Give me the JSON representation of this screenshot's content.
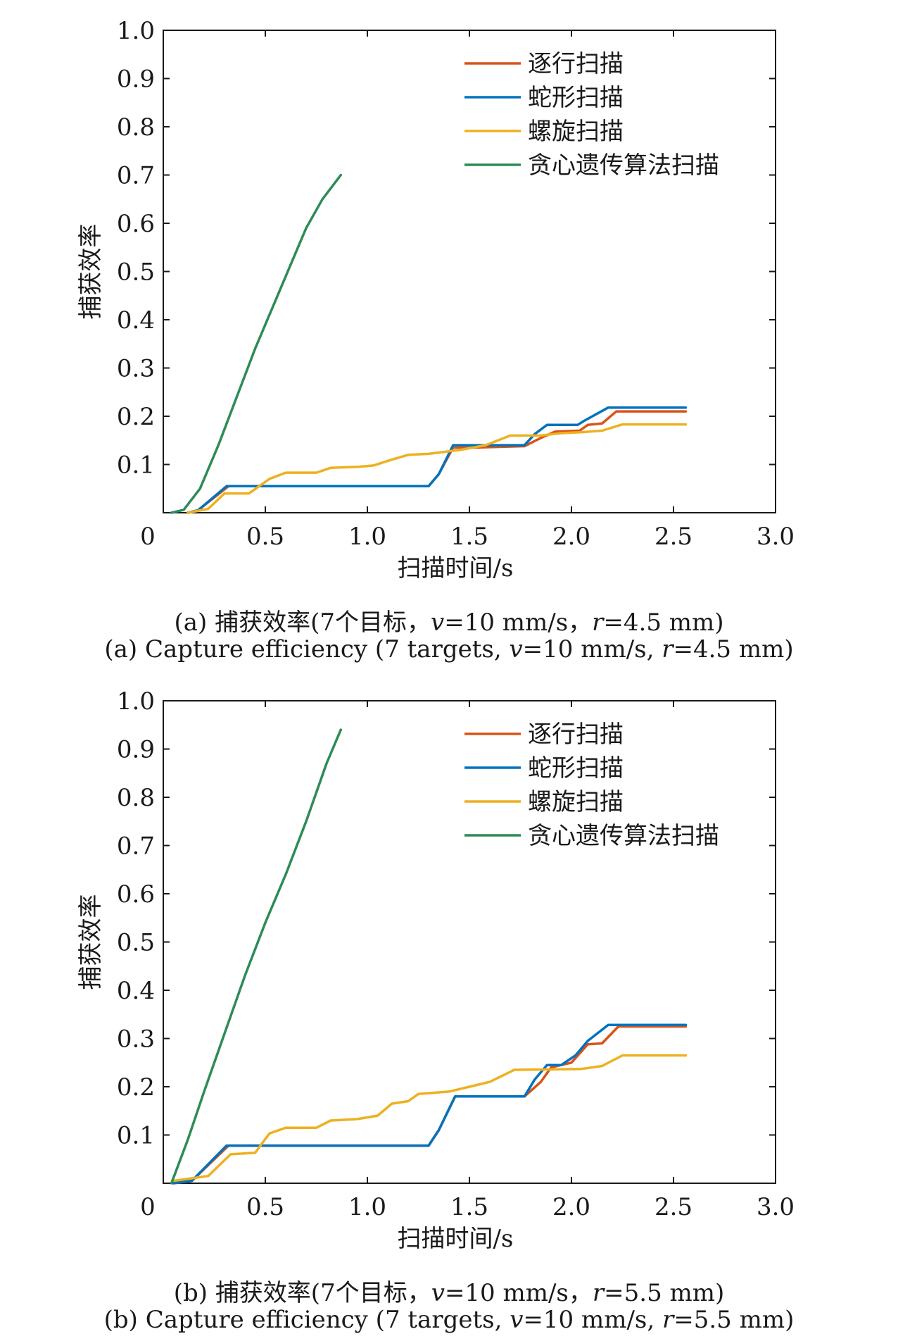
{
  "chart_data": [
    {
      "type": "line",
      "xlabel": "扫描时间/s",
      "ylabel": "捕获效率",
      "xlim": [
        0,
        3.0
      ],
      "ylim": [
        0,
        1.0
      ],
      "xticks": [
        "0",
        "0.5",
        "1.0",
        "1.5",
        "2.0",
        "2.5",
        "3.0"
      ],
      "yticks": [
        "0.1",
        "0.2",
        "0.3",
        "0.4",
        "0.5",
        "0.6",
        "0.7",
        "0.8",
        "0.9",
        "1.0"
      ],
      "legend_position": "top-right",
      "grid": false,
      "caption_cn": {
        "label": "(a)",
        "text": "捕获效率(7个目标，",
        "v": "v",
        "v_val": "=10 mm/s，",
        "r": "r",
        "r_val": "=4.5 mm)"
      },
      "caption_en": {
        "label": "(a)",
        "text": "Capture efficiency (7 targets, ",
        "v": "v",
        "v_val": "=10 mm/s, ",
        "r": "r",
        "r_val": "=4.5 mm)"
      },
      "series": [
        {
          "name": "逐行扫描",
          "color": "#d95319",
          "points": [
            [
              0.12,
              0
            ],
            [
              0.17,
              0.005
            ],
            [
              0.32,
              0.055
            ],
            [
              1.3,
              0.055
            ],
            [
              1.35,
              0.08
            ],
            [
              1.42,
              0.135
            ],
            [
              1.52,
              0.135
            ],
            [
              1.77,
              0.138
            ],
            [
              1.85,
              0.155
            ],
            [
              1.92,
              0.168
            ],
            [
              2.04,
              0.17
            ],
            [
              2.08,
              0.182
            ],
            [
              2.15,
              0.185
            ],
            [
              2.22,
              0.21
            ],
            [
              2.56,
              0.21
            ]
          ]
        },
        {
          "name": "蛇形扫描",
          "color": "#0072bd",
          "points": [
            [
              0.12,
              0
            ],
            [
              0.17,
              0.005
            ],
            [
              0.31,
              0.055
            ],
            [
              1.3,
              0.055
            ],
            [
              1.35,
              0.08
            ],
            [
              1.42,
              0.14
            ],
            [
              1.52,
              0.14
            ],
            [
              1.77,
              0.14
            ],
            [
              1.82,
              0.163
            ],
            [
              1.88,
              0.182
            ],
            [
              2.03,
              0.182
            ],
            [
              2.06,
              0.19
            ],
            [
              2.18,
              0.218
            ],
            [
              2.56,
              0.218
            ]
          ]
        },
        {
          "name": "螺旋扫描",
          "color": "#edb120",
          "points": [
            [
              0.12,
              0
            ],
            [
              0.22,
              0.008
            ],
            [
              0.3,
              0.04
            ],
            [
              0.42,
              0.04
            ],
            [
              0.52,
              0.07
            ],
            [
              0.6,
              0.083
            ],
            [
              0.75,
              0.083
            ],
            [
              0.82,
              0.093
            ],
            [
              0.95,
              0.095
            ],
            [
              1.03,
              0.098
            ],
            [
              1.12,
              0.11
            ],
            [
              1.2,
              0.12
            ],
            [
              1.3,
              0.122
            ],
            [
              1.45,
              0.13
            ],
            [
              1.58,
              0.14
            ],
            [
              1.7,
              0.16
            ],
            [
              1.85,
              0.16
            ],
            [
              1.95,
              0.165
            ],
            [
              2.05,
              0.167
            ],
            [
              2.15,
              0.17
            ],
            [
              2.25,
              0.183
            ],
            [
              2.56,
              0.183
            ]
          ]
        },
        {
          "name": "贪心遗传算法扫描",
          "color": "#2e8b57",
          "points": [
            [
              0.04,
              0
            ],
            [
              0.1,
              0.006
            ],
            [
              0.18,
              0.05
            ],
            [
              0.27,
              0.14
            ],
            [
              0.36,
              0.24
            ],
            [
              0.45,
              0.34
            ],
            [
              0.54,
              0.43
            ],
            [
              0.62,
              0.51
            ],
            [
              0.7,
              0.59
            ],
            [
              0.78,
              0.65
            ],
            [
              0.87,
              0.7
            ]
          ]
        }
      ]
    },
    {
      "type": "line",
      "xlabel": "扫描时间/s",
      "ylabel": "捕获效率",
      "xlim": [
        0,
        3.0
      ],
      "ylim": [
        0,
        1.0
      ],
      "xticks": [
        "0",
        "0.5",
        "1.0",
        "1.5",
        "2.0",
        "2.5",
        "3.0"
      ],
      "yticks": [
        "0.1",
        "0.2",
        "0.3",
        "0.4",
        "0.5",
        "0.6",
        "0.7",
        "0.8",
        "0.9",
        "1.0"
      ],
      "legend_position": "top-right",
      "grid": false,
      "caption_cn": {
        "label": "(b)",
        "text": "捕获效率(7个目标，",
        "v": "v",
        "v_val": "=10 mm/s，",
        "r": "r",
        "r_val": "=5.5 mm)"
      },
      "caption_en": {
        "label": "(b)",
        "text": "Capture efficiency (7 targets, ",
        "v": "v",
        "v_val": "=10 mm/s, ",
        "r": "r",
        "r_val": "=5.5 mm)"
      },
      "series": [
        {
          "name": "逐行扫描",
          "color": "#d95319",
          "points": [
            [
              0.05,
              0
            ],
            [
              0.14,
              0.005
            ],
            [
              0.32,
              0.078
            ],
            [
              1.3,
              0.078
            ],
            [
              1.35,
              0.11
            ],
            [
              1.43,
              0.18
            ],
            [
              1.77,
              0.18
            ],
            [
              1.85,
              0.21
            ],
            [
              1.9,
              0.24
            ],
            [
              2.0,
              0.25
            ],
            [
              2.08,
              0.288
            ],
            [
              2.15,
              0.29
            ],
            [
              2.23,
              0.325
            ],
            [
              2.56,
              0.325
            ]
          ]
        },
        {
          "name": "蛇形扫描",
          "color": "#0072bd",
          "points": [
            [
              0.05,
              0
            ],
            [
              0.14,
              0.005
            ],
            [
              0.31,
              0.078
            ],
            [
              1.3,
              0.078
            ],
            [
              1.35,
              0.11
            ],
            [
              1.43,
              0.18
            ],
            [
              1.77,
              0.18
            ],
            [
              1.82,
              0.215
            ],
            [
              1.88,
              0.245
            ],
            [
              1.95,
              0.245
            ],
            [
              2.02,
              0.265
            ],
            [
              2.08,
              0.295
            ],
            [
              2.18,
              0.328
            ],
            [
              2.56,
              0.328
            ]
          ]
        },
        {
          "name": "螺旋扫描",
          "color": "#edb120",
          "points": [
            [
              0.05,
              0.005
            ],
            [
              0.22,
              0.015
            ],
            [
              0.33,
              0.06
            ],
            [
              0.45,
              0.063
            ],
            [
              0.52,
              0.103
            ],
            [
              0.6,
              0.115
            ],
            [
              0.75,
              0.115
            ],
            [
              0.82,
              0.13
            ],
            [
              0.95,
              0.133
            ],
            [
              1.05,
              0.14
            ],
            [
              1.12,
              0.165
            ],
            [
              1.2,
              0.17
            ],
            [
              1.25,
              0.185
            ],
            [
              1.4,
              0.19
            ],
            [
              1.5,
              0.2
            ],
            [
              1.6,
              0.21
            ],
            [
              1.72,
              0.235
            ],
            [
              2.05,
              0.237
            ],
            [
              2.15,
              0.243
            ],
            [
              2.25,
              0.265
            ],
            [
              2.56,
              0.265
            ]
          ]
        },
        {
          "name": "贪心遗传算法扫描",
          "color": "#2e8b57",
          "points": [
            [
              0.04,
              0
            ],
            [
              0.12,
              0.09
            ],
            [
              0.2,
              0.19
            ],
            [
              0.3,
              0.31
            ],
            [
              0.4,
              0.43
            ],
            [
              0.5,
              0.54
            ],
            [
              0.6,
              0.64
            ],
            [
              0.7,
              0.75
            ],
            [
              0.8,
              0.87
            ],
            [
              0.87,
              0.94
            ]
          ]
        }
      ]
    }
  ]
}
